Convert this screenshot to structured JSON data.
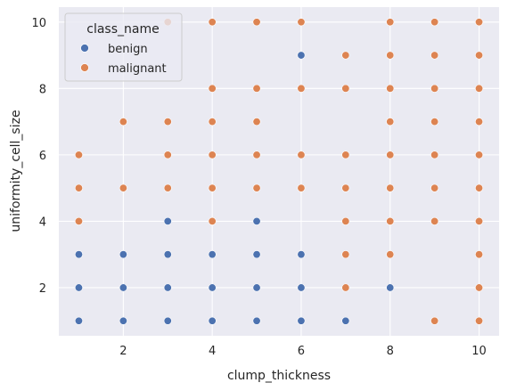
{
  "chart_data": {
    "type": "scatter",
    "xlabel": "clump_thickness",
    "ylabel": "uniformity_cell_size",
    "xlim": [
      0.55,
      10.45
    ],
    "ylim": [
      0.55,
      10.45
    ],
    "xticks": [
      "2",
      "4",
      "6",
      "8",
      "10"
    ],
    "yticks": [
      "2",
      "4",
      "6",
      "8",
      "10"
    ],
    "grid": true,
    "legend": {
      "title": "class_name",
      "placement": "top-left"
    },
    "series": [
      {
        "name": "benign",
        "color": "#4c72b0",
        "points": [
          [
            1,
            1
          ],
          [
            1,
            2
          ],
          [
            1,
            3
          ],
          [
            2,
            1
          ],
          [
            2,
            2
          ],
          [
            2,
            3
          ],
          [
            3,
            1
          ],
          [
            3,
            2
          ],
          [
            3,
            3
          ],
          [
            3,
            4
          ],
          [
            4,
            1
          ],
          [
            4,
            2
          ],
          [
            4,
            3
          ],
          [
            4,
            4
          ],
          [
            5,
            1
          ],
          [
            5,
            2
          ],
          [
            5,
            3
          ],
          [
            5,
            4
          ],
          [
            6,
            1
          ],
          [
            6,
            2
          ],
          [
            6,
            3
          ],
          [
            6,
            9
          ],
          [
            7,
            1
          ],
          [
            8,
            2
          ]
        ]
      },
      {
        "name": "malignant",
        "color": "#dd8452",
        "points": [
          [
            1,
            4
          ],
          [
            1,
            5
          ],
          [
            1,
            6
          ],
          [
            2,
            5
          ],
          [
            2,
            7
          ],
          [
            3,
            5
          ],
          [
            3,
            6
          ],
          [
            3,
            7
          ],
          [
            3,
            10
          ],
          [
            4,
            4
          ],
          [
            4,
            5
          ],
          [
            4,
            6
          ],
          [
            4,
            7
          ],
          [
            4,
            8
          ],
          [
            4,
            10
          ],
          [
            5,
            5
          ],
          [
            5,
            6
          ],
          [
            5,
            7
          ],
          [
            5,
            8
          ],
          [
            5,
            10
          ],
          [
            6,
            5
          ],
          [
            6,
            6
          ],
          [
            6,
            8
          ],
          [
            6,
            10
          ],
          [
            7,
            2
          ],
          [
            7,
            3
          ],
          [
            7,
            4
          ],
          [
            7,
            5
          ],
          [
            7,
            6
          ],
          [
            7,
            8
          ],
          [
            7,
            9
          ],
          [
            8,
            3
          ],
          [
            8,
            4
          ],
          [
            8,
            5
          ],
          [
            8,
            6
          ],
          [
            8,
            7
          ],
          [
            8,
            8
          ],
          [
            8,
            9
          ],
          [
            8,
            10
          ],
          [
            9,
            1
          ],
          [
            9,
            4
          ],
          [
            9,
            5
          ],
          [
            9,
            6
          ],
          [
            9,
            7
          ],
          [
            9,
            8
          ],
          [
            9,
            9
          ],
          [
            9,
            10
          ],
          [
            10,
            1
          ],
          [
            10,
            2
          ],
          [
            10,
            3
          ],
          [
            10,
            4
          ],
          [
            10,
            5
          ],
          [
            10,
            6
          ],
          [
            10,
            7
          ],
          [
            10,
            8
          ],
          [
            10,
            9
          ],
          [
            10,
            10
          ]
        ]
      }
    ]
  }
}
